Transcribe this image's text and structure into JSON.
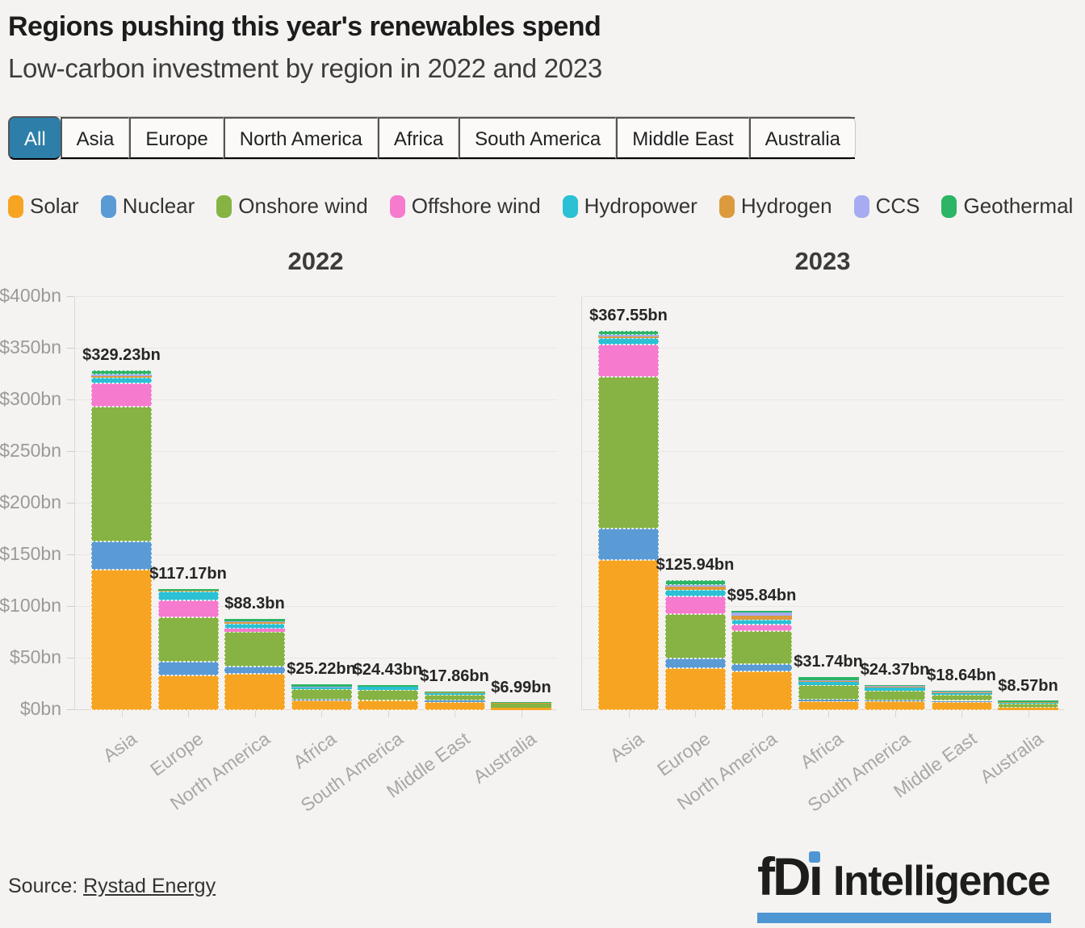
{
  "header": {
    "title": "Regions pushing this year's renewables spend",
    "subtitle": "Low-carbon investment by region in 2022 and 2023"
  },
  "tabs": {
    "items": [
      {
        "label": "All",
        "active": true
      },
      {
        "label": "Asia",
        "active": false
      },
      {
        "label": "Europe",
        "active": false
      },
      {
        "label": "North America",
        "active": false
      },
      {
        "label": "Africa",
        "active": false
      },
      {
        "label": "South America",
        "active": false
      },
      {
        "label": "Middle East",
        "active": false
      },
      {
        "label": "Australia",
        "active": false
      }
    ],
    "active_color": "#2D7FA9"
  },
  "legend": {
    "items": [
      {
        "label": "Solar",
        "color": "#F7A422"
      },
      {
        "label": "Nuclear",
        "color": "#5B9BD5"
      },
      {
        "label": "Onshore wind",
        "color": "#86B343"
      },
      {
        "label": "Offshore wind",
        "color": "#F67ACE"
      },
      {
        "label": "Hydropower",
        "color": "#2BC0D4"
      },
      {
        "label": "Hydrogen",
        "color": "#DC9A3D"
      },
      {
        "label": "CCS",
        "color": "#A6ABF2"
      },
      {
        "label": "Geothermal",
        "color": "#2BB565"
      }
    ]
  },
  "chart_data": {
    "type": "bar",
    "stacked": true,
    "unit": "$bn",
    "grid": true,
    "legend_position": "top",
    "categories": [
      "Asia",
      "Europe",
      "North America",
      "Africa",
      "South America",
      "Middle East",
      "Australia"
    ],
    "ylim": [
      0,
      400
    ],
    "ytick_step": 50,
    "ytick_labels": [
      "$0bn",
      "$50bn",
      "$100bn",
      "$150bn",
      "$200bn",
      "$250bn",
      "$300bn",
      "$350bn",
      "$400bn"
    ],
    "charts": [
      {
        "title": "2022",
        "totals": [
          329.23,
          117.17,
          88.3,
          25.22,
          24.43,
          17.86,
          6.99
        ],
        "total_labels": [
          "$329.23bn",
          "$117.17bn",
          "$88.3bn",
          "$25.22bn",
          "$24.43bn",
          "$17.86bn",
          "$6.99bn"
        ],
        "series": [
          {
            "name": "Solar",
            "values": [
              136.0,
              33.6,
              35.2,
              9.4,
              9.0,
              8.0,
              2.5
            ]
          },
          {
            "name": "Nuclear",
            "values": [
              27.0,
              13.3,
              7.0,
              0.5,
              0.4,
              1.6,
              0
            ]
          },
          {
            "name": "Onshore wind",
            "values": [
              130.5,
              43.0,
              33.6,
              10.2,
              10.0,
              5.2,
              3.5
            ]
          },
          {
            "name": "Offshore wind",
            "values": [
              23.0,
              16.4,
              3.1,
              0,
              0.1,
              0,
              0
            ]
          },
          {
            "name": "Hydropower",
            "values": [
              5.5,
              8.6,
              4.7,
              1.5,
              3.0,
              1.56,
              0.4
            ]
          },
          {
            "name": "Hydrogen",
            "values": [
              1.5,
              0.5,
              1.2,
              0.5,
              0.4,
              0.5,
              0.29
            ]
          },
          {
            "name": "CCS",
            "values": [
              1.5,
              0.3,
              1.5,
              0.3,
              0.1,
              0,
              0.1
            ]
          },
          {
            "name": "Geothermal",
            "values": [
              4.23,
              1.47,
              2.0,
              2.82,
              1.43,
              1.0,
              0.2
            ]
          }
        ]
      },
      {
        "title": "2023",
        "totals": [
          367.55,
          125.94,
          95.84,
          31.74,
          24.37,
          18.64,
          8.57
        ],
        "total_labels": [
          "$367.55bn",
          "$125.94bn",
          "$95.84bn",
          "$31.74bn",
          "$24.37bn",
          "$18.64bn",
          "$8.57bn"
        ],
        "series": [
          {
            "name": "Solar",
            "values": [
              145.0,
              40.4,
              37.5,
              8.5,
              8.5,
              7.5,
              2.5
            ]
          },
          {
            "name": "Nuclear",
            "values": [
              31.0,
              9.6,
              7.0,
              2.0,
              0.5,
              1.5,
              0
            ]
          },
          {
            "name": "Onshore wind",
            "values": [
              147.0,
              43.2,
              32.0,
              13.5,
              10.0,
              6.0,
              4.0
            ]
          },
          {
            "name": "Offshore wind",
            "values": [
              31.0,
              17.0,
              6.5,
              0.5,
              0,
              0,
              0
            ]
          },
          {
            "name": "Hydropower",
            "values": [
              6.0,
              6.5,
              4.4,
              3.0,
              3.0,
              1.5,
              0.8
            ]
          },
          {
            "name": "Hydrogen",
            "values": [
              1.5,
              2.5,
              3.7,
              1.0,
              1.0,
              0.8,
              0.5
            ]
          },
          {
            "name": "CCS",
            "values": [
              1.5,
              2.0,
              3.74,
              0.5,
              0.3,
              0.34,
              0.27
            ]
          },
          {
            "name": "Geothermal",
            "values": [
              4.55,
              4.74,
              1.0,
              2.74,
              1.07,
              1.0,
              0.5
            ]
          }
        ]
      }
    ]
  },
  "source": {
    "prefix": "Source: ",
    "link": "Rystad Energy"
  },
  "logo": {
    "fd": "fD",
    "i_stem": "ı",
    "word": "Intelligence"
  }
}
